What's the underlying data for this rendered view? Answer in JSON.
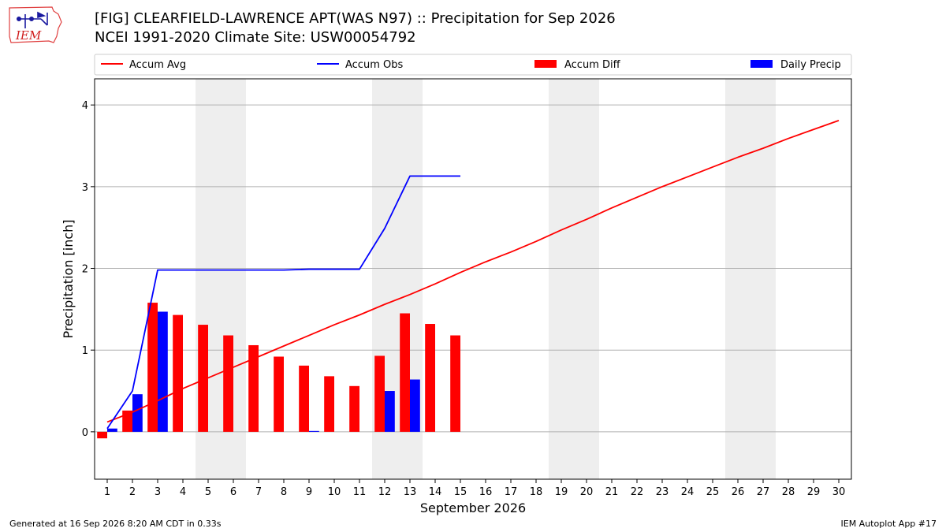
{
  "header": {
    "title": "[FIG] CLEARFIELD-LAWRENCE APT(WAS N97) :: Precipitation for Sep 2026",
    "subtitle": "NCEI 1991-2020 Climate Site: USW00054792",
    "logo_text": "IEM"
  },
  "footer": {
    "generated": "Generated at 16 Sep 2026 8:20 AM CDT in 0.33s",
    "app": "IEM Autoplot App #17"
  },
  "colors": {
    "avg": "#ff0000",
    "obs": "#0000ff",
    "diff": "#ff0000",
    "daily": "#0000ff",
    "weekend": "#eeeeee",
    "grid": "#b0b0b0"
  },
  "chart_data": {
    "type": "bar",
    "xlabel": "September 2026",
    "ylabel": "Precipitation [inch]",
    "xlim": [
      0.5,
      30.5
    ],
    "ylim": [
      -0.58,
      4.32
    ],
    "x_ticks": [
      1,
      2,
      3,
      4,
      5,
      6,
      7,
      8,
      9,
      10,
      11,
      12,
      13,
      14,
      15,
      16,
      17,
      18,
      19,
      20,
      21,
      22,
      23,
      24,
      25,
      26,
      27,
      28,
      29,
      30
    ],
    "y_ticks": [
      0,
      1,
      2,
      3,
      4
    ],
    "grid": "horizontal",
    "weekend_shading": [
      [
        5,
        6
      ],
      [
        12,
        13
      ],
      [
        19,
        20
      ],
      [
        26,
        27
      ]
    ],
    "legend": {
      "placement": "top",
      "entries": [
        {
          "label": "Accum Avg",
          "kind": "line",
          "color": "#ff0000"
        },
        {
          "label": "Accum Obs",
          "kind": "line",
          "color": "#0000ff"
        },
        {
          "label": "Accum Diff",
          "kind": "bar",
          "color": "#ff0000"
        },
        {
          "label": "Daily Precip",
          "kind": "bar",
          "color": "#0000ff"
        }
      ]
    },
    "series": [
      {
        "name": "Accum Avg",
        "type": "line",
        "x": [
          1,
          2,
          3,
          4,
          5,
          6,
          7,
          8,
          9,
          10,
          11,
          12,
          13,
          14,
          15,
          16,
          17,
          18,
          19,
          20,
          21,
          22,
          23,
          24,
          25,
          26,
          27,
          28,
          29,
          30
        ],
        "values": [
          0.12,
          0.24,
          0.38,
          0.53,
          0.66,
          0.79,
          0.92,
          1.05,
          1.18,
          1.31,
          1.43,
          1.56,
          1.68,
          1.81,
          1.95,
          2.08,
          2.2,
          2.33,
          2.47,
          2.6,
          2.74,
          2.87,
          3.0,
          3.12,
          3.24,
          3.36,
          3.47,
          3.59,
          3.7,
          3.81
        ]
      },
      {
        "name": "Accum Obs",
        "type": "line",
        "x": [
          1,
          2,
          3,
          4,
          5,
          6,
          7,
          8,
          9,
          10,
          11,
          12,
          13,
          14,
          15
        ],
        "values": [
          0.04,
          0.5,
          1.98,
          1.98,
          1.98,
          1.98,
          1.98,
          1.98,
          1.99,
          1.99,
          1.99,
          2.49,
          3.13,
          3.13,
          3.13
        ]
      },
      {
        "name": "Accum Diff",
        "type": "bar",
        "x": [
          1,
          2,
          3,
          4,
          5,
          6,
          7,
          8,
          9,
          10,
          11,
          12,
          13,
          14,
          15
        ],
        "values": [
          -0.08,
          0.26,
          1.58,
          1.43,
          1.31,
          1.18,
          1.06,
          0.92,
          0.81,
          0.68,
          0.56,
          0.93,
          1.45,
          1.32,
          1.18
        ]
      },
      {
        "name": "Daily Precip",
        "type": "bar",
        "x": [
          1,
          2,
          3,
          4,
          5,
          6,
          7,
          8,
          9,
          10,
          11,
          12,
          13,
          14,
          15
        ],
        "values": [
          0.04,
          0.46,
          1.47,
          0,
          0,
          0,
          0,
          0,
          0.01,
          0,
          0,
          0.5,
          0.64,
          0,
          0
        ]
      }
    ]
  }
}
